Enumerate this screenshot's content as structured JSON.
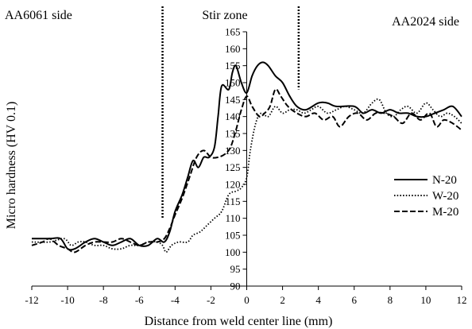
{
  "chart_data": {
    "type": "line",
    "title": "",
    "xlabel": "Distance from weld center line (mm)",
    "ylabel": "Micro hardness (HV 0.1)",
    "xlim": [
      -12,
      12
    ],
    "ylim": [
      90,
      165
    ],
    "x_ticks": [
      -12,
      -10,
      -8,
      -6,
      -4,
      -2,
      0,
      2,
      4,
      6,
      8,
      10,
      12
    ],
    "y_ticks": [
      90,
      95,
      100,
      105,
      110,
      115,
      120,
      125,
      130,
      135,
      140,
      145,
      150,
      155,
      160,
      165
    ],
    "y_axis_position_x": 0,
    "grid": false,
    "legend_placement": "right",
    "annotations": [
      {
        "text": "AA6061 side",
        "position": "top-left"
      },
      {
        "text": "Stir zone",
        "position": "top-center"
      },
      {
        "text": "AA2024 side",
        "position": "top-right"
      }
    ],
    "zone_boundaries_x": [
      -4.7,
      2.9
    ],
    "series": [
      {
        "name": "N-20",
        "style": "solid",
        "points": [
          [
            -12,
            104
          ],
          [
            -11,
            104
          ],
          [
            -10.4,
            104
          ],
          [
            -10,
            101
          ],
          [
            -9.6,
            101
          ],
          [
            -9,
            103
          ],
          [
            -8.5,
            104
          ],
          [
            -8,
            103
          ],
          [
            -7.5,
            102
          ],
          [
            -7,
            103
          ],
          [
            -6.5,
            104
          ],
          [
            -6,
            102
          ],
          [
            -5.5,
            102
          ],
          [
            -5,
            104
          ],
          [
            -4.6,
            103
          ],
          [
            -4.3,
            106
          ],
          [
            -4,
            112
          ],
          [
            -3.6,
            117
          ],
          [
            -3.3,
            122
          ],
          [
            -3,
            127
          ],
          [
            -2.7,
            125
          ],
          [
            -2.4,
            128
          ],
          [
            -2.1,
            128
          ],
          [
            -1.8,
            131
          ],
          [
            -1.6,
            140
          ],
          [
            -1.4,
            149
          ],
          [
            -1,
            148
          ],
          [
            -0.8,
            153
          ],
          [
            -0.6,
            155
          ],
          [
            -0.3,
            150
          ],
          [
            0,
            147
          ],
          [
            0.3,
            152
          ],
          [
            0.6,
            155
          ],
          [
            0.9,
            156
          ],
          [
            1.2,
            155
          ],
          [
            1.6,
            152
          ],
          [
            2,
            150
          ],
          [
            2.4,
            146
          ],
          [
            2.8,
            143
          ],
          [
            3.3,
            142
          ],
          [
            4,
            144
          ],
          [
            4.5,
            144
          ],
          [
            5,
            143
          ],
          [
            6,
            143
          ],
          [
            6.5,
            141
          ],
          [
            7,
            142
          ],
          [
            7.5,
            141
          ],
          [
            8,
            142
          ],
          [
            8.5,
            141
          ],
          [
            9,
            141
          ],
          [
            9.5,
            140
          ],
          [
            10,
            140
          ],
          [
            10.5,
            141
          ],
          [
            11,
            142
          ],
          [
            11.5,
            143
          ],
          [
            12,
            140
          ]
        ]
      },
      {
        "name": "W-20",
        "style": "dotted",
        "points": [
          [
            -12,
            103
          ],
          [
            -11,
            103
          ],
          [
            -10.2,
            104
          ],
          [
            -9.8,
            102
          ],
          [
            -9.4,
            103
          ],
          [
            -9,
            103
          ],
          [
            -8.5,
            102
          ],
          [
            -8,
            102
          ],
          [
            -7.5,
            101
          ],
          [
            -7,
            101
          ],
          [
            -6.5,
            102
          ],
          [
            -6,
            102
          ],
          [
            -5.5,
            103
          ],
          [
            -5,
            103
          ],
          [
            -4.7,
            102
          ],
          [
            -4.5,
            100
          ],
          [
            -4.2,
            102
          ],
          [
            -3.8,
            103
          ],
          [
            -3.3,
            103
          ],
          [
            -3,
            105
          ],
          [
            -2.6,
            106
          ],
          [
            -2.2,
            108
          ],
          [
            -1.8,
            110
          ],
          [
            -1.4,
            112
          ],
          [
            -1,
            117
          ],
          [
            -0.6,
            118
          ],
          [
            -0.3,
            119
          ],
          [
            0,
            122
          ],
          [
            0.2,
            130
          ],
          [
            0.5,
            138
          ],
          [
            0.8,
            141
          ],
          [
            1.2,
            140
          ],
          [
            1.6,
            143
          ],
          [
            2,
            141
          ],
          [
            2.4,
            142
          ],
          [
            2.8,
            142
          ],
          [
            3.2,
            141
          ],
          [
            3.6,
            142
          ],
          [
            4,
            143
          ],
          [
            4.5,
            141
          ],
          [
            5,
            142
          ],
          [
            5.5,
            143
          ],
          [
            6,
            142
          ],
          [
            6.5,
            141
          ],
          [
            7,
            144
          ],
          [
            7.4,
            145
          ],
          [
            7.8,
            141
          ],
          [
            8.2,
            140
          ],
          [
            8.6,
            142
          ],
          [
            9,
            143
          ],
          [
            9.5,
            141
          ],
          [
            10,
            144
          ],
          [
            10.4,
            142
          ],
          [
            10.8,
            140
          ],
          [
            11.2,
            141
          ],
          [
            11.6,
            140
          ],
          [
            12,
            138
          ]
        ]
      },
      {
        "name": "M-20",
        "style": "dashed",
        "points": [
          [
            -12,
            102
          ],
          [
            -11.4,
            103
          ],
          [
            -11,
            104
          ],
          [
            -10.5,
            102
          ],
          [
            -10,
            101
          ],
          [
            -9.6,
            100
          ],
          [
            -9,
            102
          ],
          [
            -8.5,
            103
          ],
          [
            -8,
            103
          ],
          [
            -7.5,
            103
          ],
          [
            -7,
            104
          ],
          [
            -6.5,
            103
          ],
          [
            -6,
            102
          ],
          [
            -5.5,
            103
          ],
          [
            -5,
            103
          ],
          [
            -4.6,
            104
          ],
          [
            -4.3,
            107
          ],
          [
            -4,
            111
          ],
          [
            -3.6,
            116
          ],
          [
            -3.2,
            122
          ],
          [
            -2.8,
            128
          ],
          [
            -2.4,
            130
          ],
          [
            -2,
            128
          ],
          [
            -1.6,
            128
          ],
          [
            -1.2,
            129
          ],
          [
            -0.9,
            131
          ],
          [
            -0.6,
            136
          ],
          [
            -0.3,
            142
          ],
          [
            0,
            146
          ],
          [
            0.3,
            143
          ],
          [
            0.7,
            140
          ],
          [
            1,
            141
          ],
          [
            1.3,
            143
          ],
          [
            1.6,
            148
          ],
          [
            1.9,
            146
          ],
          [
            2.3,
            143
          ],
          [
            2.8,
            141
          ],
          [
            3.3,
            140
          ],
          [
            3.8,
            141
          ],
          [
            4.3,
            139
          ],
          [
            4.8,
            140
          ],
          [
            5.2,
            137
          ],
          [
            5.7,
            140
          ],
          [
            6.2,
            141
          ],
          [
            6.7,
            139
          ],
          [
            7.2,
            141
          ],
          [
            7.7,
            141
          ],
          [
            8.2,
            140
          ],
          [
            8.7,
            138
          ],
          [
            9.2,
            141
          ],
          [
            9.7,
            139
          ],
          [
            10.2,
            141
          ],
          [
            10.6,
            137
          ],
          [
            11,
            139
          ],
          [
            11.5,
            138
          ],
          [
            12,
            136
          ]
        ]
      }
    ]
  }
}
